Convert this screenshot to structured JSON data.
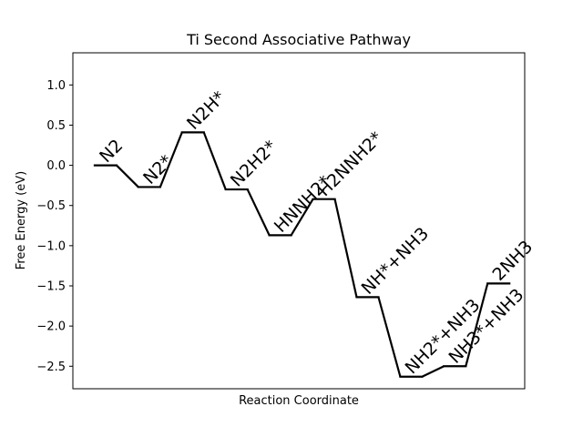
{
  "chart_data": {
    "type": "line",
    "title": "Ti Second Associative Pathway",
    "xlabel": "Reaction Coordinate",
    "ylabel": "Free Energy (eV)",
    "ylim": [
      -2.78,
      1.4
    ],
    "xlim": [
      0,
      20.7
    ],
    "yticks": [
      1.0,
      0.5,
      0.0,
      -0.5,
      -1.0,
      -1.5,
      -2.0,
      -2.5
    ],
    "ytick_labels": [
      "1.0",
      "0.5",
      "0.0",
      "−0.5",
      "−1.0",
      "−1.5",
      "−2.0",
      "−2.5"
    ],
    "show_xticks": false,
    "grid": false,
    "series": [
      {
        "color": "#000000",
        "steps": [
          {
            "label": "N2",
            "y": 0.0
          },
          {
            "label": "N2*",
            "y": -0.27
          },
          {
            "label": "N2H*",
            "y": 0.41
          },
          {
            "label": "N2H2*",
            "y": -0.3
          },
          {
            "label": "HNNH2*",
            "y": -0.87
          },
          {
            "label": "H2NNH2*",
            "y": -0.42
          },
          {
            "label": "NH*+NH3",
            "y": -1.64
          },
          {
            "label": "NH2*+NH3",
            "y": -2.63
          },
          {
            "label": "NH3*+NH3",
            "y": -2.5
          },
          {
            "label": "2NH3",
            "y": -1.47
          }
        ]
      }
    ]
  }
}
